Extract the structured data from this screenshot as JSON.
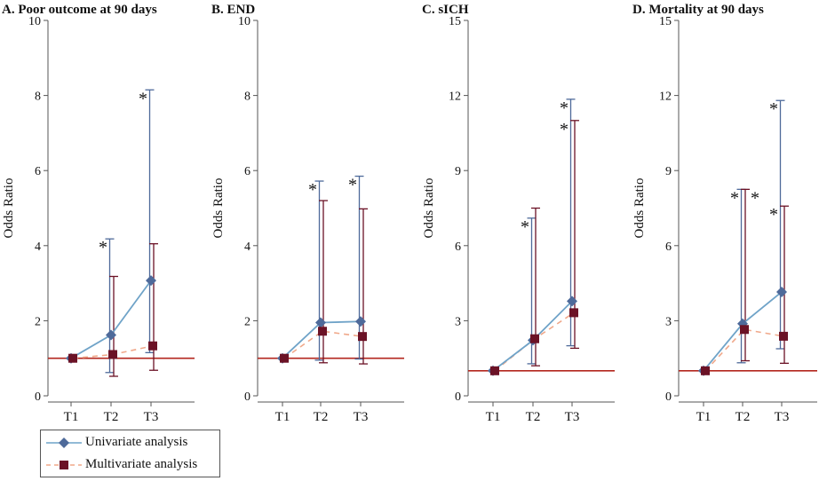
{
  "colors": {
    "univariate": "#4e6a9a",
    "univariate_line": "#6fa3c8",
    "multivariate": "#6b1226",
    "multivariate_line": "#f0a88a",
    "reference": "#b3261e",
    "axis": "#555555"
  },
  "legend": {
    "univariate": "Univariate analysis",
    "multivariate": "Multivariate analysis"
  },
  "chart_data": [
    {
      "type": "line",
      "title": "A. Poor outcome at 90 days",
      "ylabel": "Odds Ratio",
      "categories": [
        "T1",
        "T2",
        "T3"
      ],
      "ylim": [
        0,
        10
      ],
      "yticks": [
        0,
        2,
        4,
        6,
        8,
        10
      ],
      "reference": 1,
      "series": [
        {
          "name": "Univariate analysis",
          "values": [
            1,
            1.62,
            3.07
          ],
          "lower": [
            1,
            0.62,
            1.15
          ],
          "upper": [
            1,
            4.18,
            8.15
          ],
          "stars": [
            false,
            true,
            true
          ]
        },
        {
          "name": "Multivariate analysis",
          "values": [
            1,
            1.1,
            1.33
          ],
          "lower": [
            1,
            0.52,
            0.68
          ],
          "upper": [
            1,
            3.18,
            4.05
          ],
          "stars": [
            false,
            false,
            false
          ]
        }
      ]
    },
    {
      "type": "line",
      "title": "B. END",
      "ylabel": "Odds Ratio",
      "categories": [
        "T1",
        "T2",
        "T3"
      ],
      "ylim": [
        0,
        10
      ],
      "yticks": [
        0,
        2,
        4,
        6,
        8,
        10
      ],
      "reference": 1,
      "series": [
        {
          "name": "Univariate analysis",
          "values": [
            1,
            1.95,
            1.98
          ],
          "lower": [
            1,
            0.95,
            0.98
          ],
          "upper": [
            1,
            5.72,
            5.85
          ],
          "stars": [
            false,
            true,
            true
          ]
        },
        {
          "name": "Multivariate analysis",
          "values": [
            1,
            1.72,
            1.58
          ],
          "lower": [
            1,
            0.88,
            0.85
          ],
          "upper": [
            1,
            5.2,
            4.98
          ],
          "stars": [
            false,
            false,
            false
          ]
        }
      ]
    },
    {
      "type": "line",
      "title": "C. sICH",
      "ylabel": "Odds Ratio",
      "categories": [
        "T1",
        "T2",
        "T3"
      ],
      "ylim": [
        0,
        15
      ],
      "yticks": [
        0,
        3,
        6,
        9,
        12,
        15
      ],
      "reference": 1,
      "series": [
        {
          "name": "Univariate analysis",
          "values": [
            1,
            2.22,
            3.78
          ],
          "lower": [
            1,
            1.28,
            2.0
          ],
          "upper": [
            1,
            7.1,
            11.85
          ],
          "stars": [
            false,
            true,
            true
          ]
        },
        {
          "name": "Multivariate analysis",
          "values": [
            1,
            2.28,
            3.32
          ],
          "lower": [
            1,
            1.2,
            1.9
          ],
          "upper": [
            1,
            7.5,
            11.0
          ],
          "stars": [
            false,
            false,
            true
          ]
        }
      ]
    },
    {
      "type": "line",
      "title": "D. Mortality at 90 days",
      "ylabel": "Odds Ratio",
      "categories": [
        "T1",
        "T2",
        "T3"
      ],
      "ylim": [
        0,
        15
      ],
      "yticks": [
        0,
        3,
        6,
        9,
        12,
        15
      ],
      "reference": 1,
      "series": [
        {
          "name": "Univariate analysis",
          "values": [
            1,
            2.88,
            4.15
          ],
          "lower": [
            1,
            1.32,
            1.88
          ],
          "upper": [
            1,
            8.25,
            11.8
          ],
          "stars": [
            false,
            true,
            true
          ]
        },
        {
          "name": "Multivariate analysis",
          "values": [
            1,
            2.65,
            2.38
          ],
          "lower": [
            1,
            1.4,
            1.3
          ],
          "upper": [
            1,
            8.25,
            7.58
          ],
          "stars": [
            false,
            true,
            true
          ]
        }
      ]
    }
  ]
}
